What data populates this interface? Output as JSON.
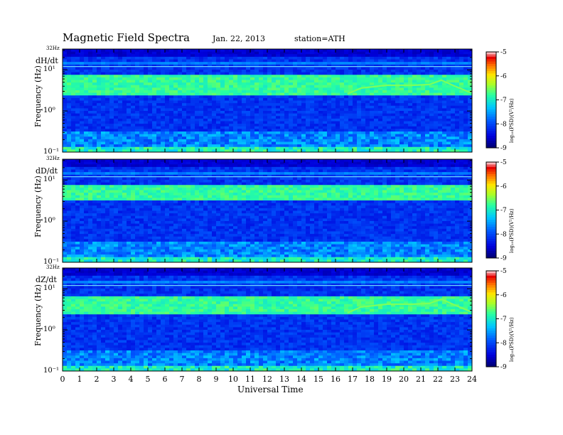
{
  "figure": {
    "title": "Magnetic  Field  Spectra",
    "date": "Jan. 22, 2013",
    "station": "station=ATH",
    "xlabel": "Universal Time"
  },
  "chart_data": [
    {
      "type": "heatmap",
      "component": "dH/dt",
      "ylabel": "Frequency  (Hz)",
      "ytick_labels": [
        "10¹",
        "10⁰",
        "10⁻¹"
      ],
      "ytop_label": "32Hz",
      "xlabel": "Universal Time",
      "xlim": [
        0,
        24
      ],
      "xtick_labels": [
        "0",
        "1",
        "2",
        "3",
        "4",
        "5",
        "6",
        "7",
        "8",
        "9",
        "10",
        "11",
        "12",
        "13",
        "14",
        "15",
        "16",
        "17",
        "18",
        "19",
        "20",
        "21",
        "22",
        "23",
        "24"
      ],
      "ylim": [
        0.1,
        32
      ],
      "yscale": "log",
      "colorbar": {
        "label": "log₁₀(PSD)(V²/Hz)",
        "range": [
          -9,
          -5
        ],
        "tick_labels": [
          "-5",
          "-6",
          "-7",
          "-8",
          "-9"
        ]
      },
      "features": {
        "band_hz": [
          2.5,
          8
        ],
        "lower_arc": true
      }
    },
    {
      "type": "heatmap",
      "component": "dD/dt",
      "ylabel": "Frequency  (Hz)",
      "ytick_labels": [
        "10¹",
        "10⁰",
        "10⁻¹"
      ],
      "ytop_label": "32Hz",
      "xlabel": "Universal Time",
      "xlim": [
        0,
        24
      ],
      "xtick_labels": [
        "0",
        "1",
        "2",
        "3",
        "4",
        "5",
        "6",
        "7",
        "8",
        "9",
        "10",
        "11",
        "12",
        "13",
        "14",
        "15",
        "16",
        "17",
        "18",
        "19",
        "20",
        "21",
        "22",
        "23",
        "24"
      ],
      "ylim": [
        0.1,
        32
      ],
      "yscale": "log",
      "colorbar": {
        "label": "log₁₀(PSD)(V²/Hz)",
        "range": [
          -9,
          -5
        ],
        "tick_labels": [
          "-5",
          "-6",
          "-7",
          "-8",
          "-9"
        ]
      },
      "features": {
        "band_hz": [
          3,
          8
        ],
        "lower_arc": false
      }
    },
    {
      "type": "heatmap",
      "component": "dZ/dt",
      "ylabel": "Frequency  (Hz)",
      "ytick_labels": [
        "10¹",
        "10⁰",
        "10⁻¹"
      ],
      "ytop_label": "32Hz",
      "xlabel": "Universal Time",
      "xlim": [
        0,
        24
      ],
      "xtick_labels": [
        "0",
        "1",
        "2",
        "3",
        "4",
        "5",
        "6",
        "7",
        "8",
        "9",
        "10",
        "11",
        "12",
        "13",
        "14",
        "15",
        "16",
        "17",
        "18",
        "19",
        "20",
        "21",
        "22",
        "23",
        "24"
      ],
      "ylim": [
        0.1,
        32
      ],
      "yscale": "log",
      "colorbar": {
        "label": "log₁₀(PSD)(V²/Hz)",
        "range": [
          -9,
          -5
        ],
        "tick_labels": [
          "-5",
          "-6",
          "-7",
          "-8",
          "-9"
        ]
      },
      "features": {
        "band_hz": [
          2.5,
          7
        ],
        "lower_arc": true
      }
    }
  ]
}
